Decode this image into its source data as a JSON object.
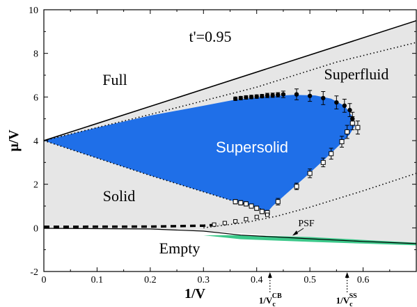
{
  "chart_data": {
    "type": "scatter",
    "title": "t'=0.95",
    "xlabel": "1/V",
    "ylabel": "μ/V",
    "xlim": [
      0,
      0.7
    ],
    "ylim": [
      -2,
      10
    ],
    "x_ticks": [
      "0",
      "0.1",
      "0.2",
      "0.3",
      "0.4",
      "0.5",
      "0.6"
    ],
    "y_ticks": [
      "-2",
      "0",
      "2",
      "4",
      "6",
      "8",
      "10"
    ],
    "grid": false,
    "regions": {
      "full": "Full",
      "superfluid": "Superfluid",
      "supersolid": "Supersolid",
      "solid": "Solid",
      "empty": "Empty",
      "psf": "PSF"
    },
    "annotations": [
      {
        "x": 0.425,
        "label": "1/V",
        "sub": "c",
        "sup": "CB"
      },
      {
        "x": 0.57,
        "label": "1/V",
        "sub": "c",
        "sup": "SS"
      }
    ],
    "colors": {
      "superfluid_fill": "#e6e6e6",
      "supersolid_fill": "#1f6fe8",
      "psf_fill": "#3cc88a",
      "line": "#000000"
    },
    "series": [
      {
        "marker": "filled-circle",
        "points": [
          {
            "x": 0.36,
            "y": 5.92,
            "err": 0.08
          },
          {
            "x": 0.37,
            "y": 5.95,
            "err": 0.08
          },
          {
            "x": 0.38,
            "y": 5.98,
            "err": 0.08
          },
          {
            "x": 0.39,
            "y": 6.0,
            "err": 0.08
          },
          {
            "x": 0.4,
            "y": 6.02,
            "err": 0.08
          },
          {
            "x": 0.41,
            "y": 6.04,
            "err": 0.08
          },
          {
            "x": 0.42,
            "y": 6.07,
            "err": 0.1
          },
          {
            "x": 0.43,
            "y": 6.08,
            "err": 0.1
          },
          {
            "x": 0.44,
            "y": 6.1,
            "err": 0.1
          },
          {
            "x": 0.45,
            "y": 6.12,
            "err": 0.15
          },
          {
            "x": 0.475,
            "y": 6.12,
            "err": 0.25
          },
          {
            "x": 0.5,
            "y": 6.05,
            "err": 0.25
          },
          {
            "x": 0.525,
            "y": 5.95,
            "err": 0.3
          },
          {
            "x": 0.55,
            "y": 5.75,
            "err": 0.3
          },
          {
            "x": 0.565,
            "y": 5.6,
            "err": 0.3
          },
          {
            "x": 0.575,
            "y": 5.4,
            "err": 0.3
          },
          {
            "x": 0.58,
            "y": 5.0,
            "err": 0.3
          }
        ]
      },
      {
        "marker": "open-square",
        "points": [
          {
            "x": 0.36,
            "y": 1.2,
            "err": 0.1
          },
          {
            "x": 0.37,
            "y": 1.15,
            "err": 0.1
          },
          {
            "x": 0.38,
            "y": 1.1,
            "err": 0.1
          },
          {
            "x": 0.39,
            "y": 1.0,
            "err": 0.1
          },
          {
            "x": 0.4,
            "y": 0.9,
            "err": 0.1
          },
          {
            "x": 0.41,
            "y": 0.75,
            "err": 0.1
          },
          {
            "x": 0.42,
            "y": 0.7,
            "err": 0.1
          },
          {
            "x": 0.44,
            "y": 1.2,
            "err": 0.15
          },
          {
            "x": 0.475,
            "y": 1.9,
            "err": 0.15
          },
          {
            "x": 0.5,
            "y": 2.5,
            "err": 0.2
          },
          {
            "x": 0.525,
            "y": 3.0,
            "err": 0.2
          },
          {
            "x": 0.54,
            "y": 3.4,
            "err": 0.25
          },
          {
            "x": 0.56,
            "y": 3.95,
            "err": 0.25
          },
          {
            "x": 0.57,
            "y": 4.4,
            "err": 0.3
          },
          {
            "x": 0.58,
            "y": 4.8,
            "err": 0.3
          },
          {
            "x": 0.59,
            "y": 4.6,
            "err": 0.3
          }
        ]
      },
      {
        "marker": "open-square-small",
        "points": [
          {
            "x": 0.32,
            "y": 0.15,
            "err": 0.05
          },
          {
            "x": 0.34,
            "y": 0.22,
            "err": 0.05
          },
          {
            "x": 0.36,
            "y": 0.3,
            "err": 0.05
          },
          {
            "x": 0.38,
            "y": 0.4,
            "err": 0.05
          },
          {
            "x": 0.4,
            "y": 0.5,
            "err": 0.05
          },
          {
            "x": 0.42,
            "y": 0.6,
            "err": 0.05
          }
        ]
      }
    ]
  }
}
